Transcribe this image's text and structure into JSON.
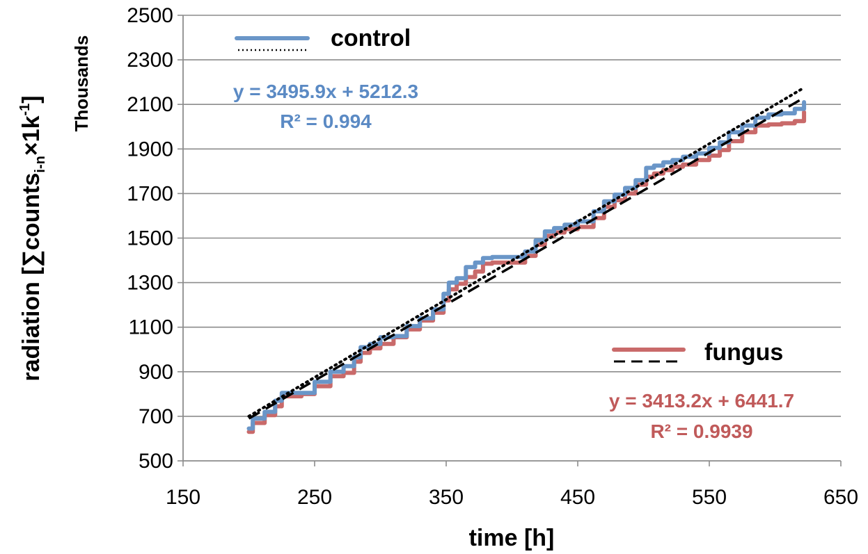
{
  "chart_data": {
    "type": "line",
    "xlabel": "time [h]",
    "ylabel": {
      "prefix": "radiation [",
      "sym": "∑counts",
      "sub": "i-n",
      "mid": "×1k",
      "sup": "-1",
      "suffix": "]"
    },
    "y_units": "Thousands",
    "xlim": [
      150,
      650
    ],
    "ylim": [
      500,
      2500
    ],
    "x_ticks": [
      "150",
      "250",
      "350",
      "450",
      "550",
      "650"
    ],
    "y_ticks": [
      "500",
      "700",
      "900",
      "1100",
      "1300",
      "1500",
      "1700",
      "1900",
      "2100",
      "2300",
      "2500"
    ],
    "grid": "horizontal",
    "colors": {
      "control": "#6a96c8",
      "fungus": "#c96a6a",
      "trend": "#000000"
    },
    "series": [
      {
        "name": "control",
        "x": [
          200,
          203,
          212,
          220,
          225,
          240,
          250,
          262,
          272,
          280,
          285,
          292,
          300,
          310,
          320,
          330,
          340,
          348,
          352,
          358,
          365,
          372,
          378,
          385,
          400,
          410,
          418,
          425,
          432,
          440,
          450,
          462,
          470,
          478,
          486,
          494,
          502,
          508,
          515,
          522,
          530,
          540,
          550,
          558,
          565,
          575,
          585,
          595,
          605,
          615,
          622
        ],
        "y": [
          645,
          690,
          720,
          770,
          805,
          805,
          855,
          900,
          925,
          965,
          1010,
          1025,
          1055,
          1060,
          1105,
          1140,
          1180,
          1250,
          1300,
          1320,
          1370,
          1390,
          1410,
          1415,
          1415,
          1440,
          1490,
          1530,
          1545,
          1560,
          1575,
          1620,
          1665,
          1695,
          1725,
          1760,
          1815,
          1825,
          1840,
          1850,
          1865,
          1880,
          1905,
          1930,
          1975,
          2005,
          2040,
          2055,
          2060,
          2080,
          2110
        ]
      },
      {
        "name": "fungus",
        "x": [
          200,
          203,
          212,
          220,
          225,
          240,
          250,
          262,
          272,
          280,
          285,
          292,
          300,
          310,
          320,
          330,
          340,
          348,
          352,
          358,
          365,
          372,
          378,
          385,
          400,
          410,
          418,
          425,
          432,
          440,
          450,
          462,
          470,
          478,
          486,
          494,
          502,
          508,
          515,
          522,
          530,
          540,
          550,
          558,
          565,
          575,
          585,
          595,
          605,
          615,
          622
        ],
        "y": [
          630,
          670,
          705,
          745,
          790,
          800,
          835,
          880,
          895,
          945,
          985,
          1005,
          1025,
          1055,
          1090,
          1130,
          1165,
          1220,
          1270,
          1295,
          1325,
          1350,
          1385,
          1390,
          1390,
          1420,
          1470,
          1510,
          1525,
          1540,
          1550,
          1590,
          1640,
          1670,
          1700,
          1740,
          1775,
          1790,
          1805,
          1820,
          1830,
          1850,
          1870,
          1895,
          1935,
          1975,
          2005,
          2010,
          2015,
          2025,
          2065
        ]
      }
    ],
    "trendlines": [
      {
        "series": "control",
        "style": "dotted",
        "x": [
          200,
          622
        ],
        "y": [
          700,
          2175
        ]
      },
      {
        "series": "fungus",
        "style": "dashed",
        "x": [
          200,
          622
        ],
        "y": [
          690,
          2130
        ]
      }
    ],
    "legend": [
      {
        "label": "control",
        "color": "#6a96c8",
        "trend_style": "dotted"
      },
      {
        "label": "fungus",
        "color": "#c96a6a",
        "trend_style": "dashed"
      }
    ],
    "annotations": {
      "control_eq": "y = 3495.9x + 5212.3",
      "control_r2": "R² = 0.994",
      "fungus_eq": "y = 3413.2x + 6441.7",
      "fungus_r2": "R² = 0.9939"
    }
  }
}
